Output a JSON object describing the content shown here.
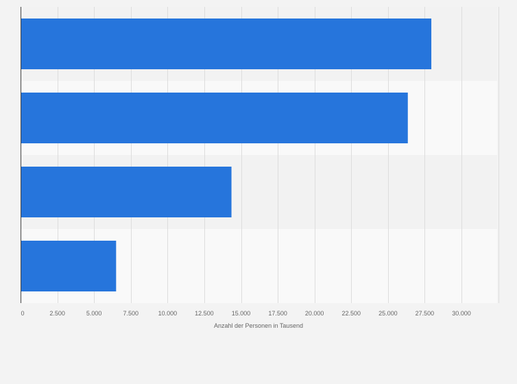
{
  "chart_data": {
    "type": "bar",
    "orientation": "horizontal",
    "categories": [
      "",
      "",
      "",
      ""
    ],
    "values": [
      27950,
      26350,
      14350,
      6500
    ],
    "xlabel": "Anzahl der Personen in Tausend",
    "ylabel": "",
    "xlim": [
      0,
      32500
    ],
    "xticks": [
      0,
      2500,
      5000,
      7500,
      10000,
      12500,
      15000,
      17500,
      20000,
      22500,
      25000,
      27500,
      30000
    ],
    "xtick_labels": [
      "0",
      "2.500",
      "5.000",
      "7.500",
      "10.000",
      "12.500",
      "15.000",
      "17.500",
      "20.000",
      "22.500",
      "25.000",
      "27.500",
      "30.000"
    ],
    "grid": true,
    "legend": "none"
  },
  "colors": {
    "bar": "#2675dc",
    "page_background": "#f3f3f3",
    "band_dark": "#f2f2f2",
    "band_light": "#f9f9f9",
    "grid": "#dddddd",
    "axis": "#444444",
    "text": "#666666"
  }
}
